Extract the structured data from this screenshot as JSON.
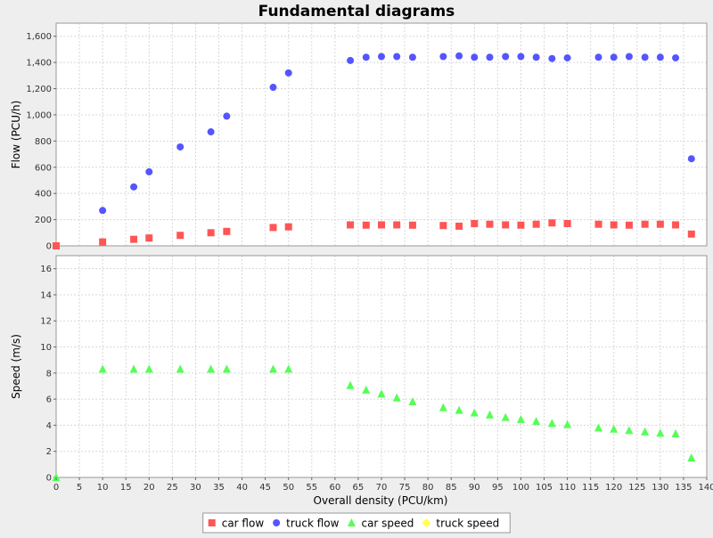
{
  "chart_data": {
    "type": "scatter",
    "title": "Fundamental diagrams",
    "xlabel": "Overall density (PCU/km)",
    "xlim": [
      0,
      140
    ],
    "x_ticks": [
      0,
      5,
      10,
      15,
      20,
      25,
      30,
      35,
      40,
      45,
      50,
      55,
      60,
      65,
      70,
      75,
      80,
      85,
      90,
      95,
      100,
      105,
      110,
      115,
      120,
      125,
      130,
      135,
      140
    ],
    "grid": true,
    "legend_position": "bottom",
    "colors": {
      "car_flow": "#ff5555",
      "truck_flow": "#5555ff",
      "car_speed": "#55ff55",
      "truck_speed": "#ffff55",
      "plot_bg": "#ffffff",
      "grid": "#d8d8d8"
    },
    "panels": [
      {
        "ylabel": "Flow (PCU/h)",
        "ylim": [
          0,
          1700
        ],
        "y_ticks": [
          0,
          200,
          400,
          600,
          800,
          1000,
          1200,
          1400,
          1600
        ],
        "y_tick_labels": [
          "0",
          "200",
          "400",
          "600",
          "800",
          "1,000",
          "1,200",
          "1,400",
          "1,600"
        ],
        "series": [
          {
            "name": "car flow",
            "marker": "square",
            "x": [
              0,
              10,
              16.7,
              20,
              26.7,
              33.3,
              36.7,
              46.7,
              50,
              63.3,
              66.7,
              70,
              73.3,
              76.7,
              83.3,
              86.7,
              90,
              93.3,
              96.7,
              100,
              103.3,
              106.7,
              110,
              116.7,
              120,
              123.3,
              126.7,
              130,
              133.3,
              136.7
            ],
            "y": [
              0,
              30,
              50,
              60,
              80,
              100,
              110,
              140,
              145,
              160,
              158,
              160,
              160,
              158,
              155,
              150,
              170,
              165,
              160,
              158,
              165,
              175,
              170,
              165,
              160,
              158,
              165,
              165,
              160,
              90
            ]
          },
          {
            "name": "truck flow",
            "marker": "circle",
            "x": [
              10,
              16.7,
              20,
              26.7,
              33.3,
              36.7,
              46.7,
              50,
              63.3,
              66.7,
              70,
              73.3,
              76.7,
              83.3,
              86.7,
              90,
              93.3,
              96.7,
              100,
              103.3,
              106.7,
              110,
              116.7,
              120,
              123.3,
              126.7,
              130,
              133.3,
              136.7
            ],
            "y": [
              270,
              450,
              565,
              755,
              870,
              990,
              1210,
              1320,
              1415,
              1440,
              1445,
              1445,
              1440,
              1445,
              1450,
              1440,
              1440,
              1445,
              1445,
              1440,
              1430,
              1435,
              1440,
              1440,
              1445,
              1440,
              1440,
              1435,
              665
            ]
          }
        ]
      },
      {
        "ylabel": "Speed (m/s)",
        "ylim": [
          0,
          17
        ],
        "y_ticks": [
          0,
          2,
          4,
          6,
          8,
          10,
          12,
          14,
          16
        ],
        "y_tick_labels": [
          "0",
          "2",
          "4",
          "6",
          "8",
          "10",
          "12",
          "14",
          "16"
        ],
        "series": [
          {
            "name": "car speed",
            "marker": "triangle",
            "x": [
              0,
              10,
              16.7,
              20,
              26.7,
              33.3,
              36.7,
              46.7,
              50,
              63.3,
              66.7,
              70,
              73.3,
              76.7,
              83.3,
              86.7,
              90,
              93.3,
              96.7,
              100,
              103.3,
              106.7,
              110,
              116.7,
              120,
              123.3,
              126.7,
              130,
              133.3,
              136.7
            ],
            "y": [
              0,
              8.3,
              8.3,
              8.3,
              8.3,
              8.3,
              8.3,
              8.3,
              8.3,
              7.05,
              6.7,
              6.4,
              6.1,
              5.8,
              5.35,
              5.15,
              4.95,
              4.8,
              4.6,
              4.45,
              4.3,
              4.15,
              4.05,
              3.8,
              3.7,
              3.6,
              3.5,
              3.4,
              3.35,
              1.5
            ]
          },
          {
            "name": "truck speed",
            "marker": "diamond",
            "x": [],
            "y": []
          }
        ]
      }
    ],
    "legend": [
      {
        "name": "car flow",
        "marker": "square",
        "color": "#ff5555"
      },
      {
        "name": "truck flow",
        "marker": "circle",
        "color": "#5555ff"
      },
      {
        "name": "car speed",
        "marker": "triangle",
        "color": "#55ff55"
      },
      {
        "name": "truck speed",
        "marker": "diamond",
        "color": "#ffff55"
      }
    ]
  }
}
